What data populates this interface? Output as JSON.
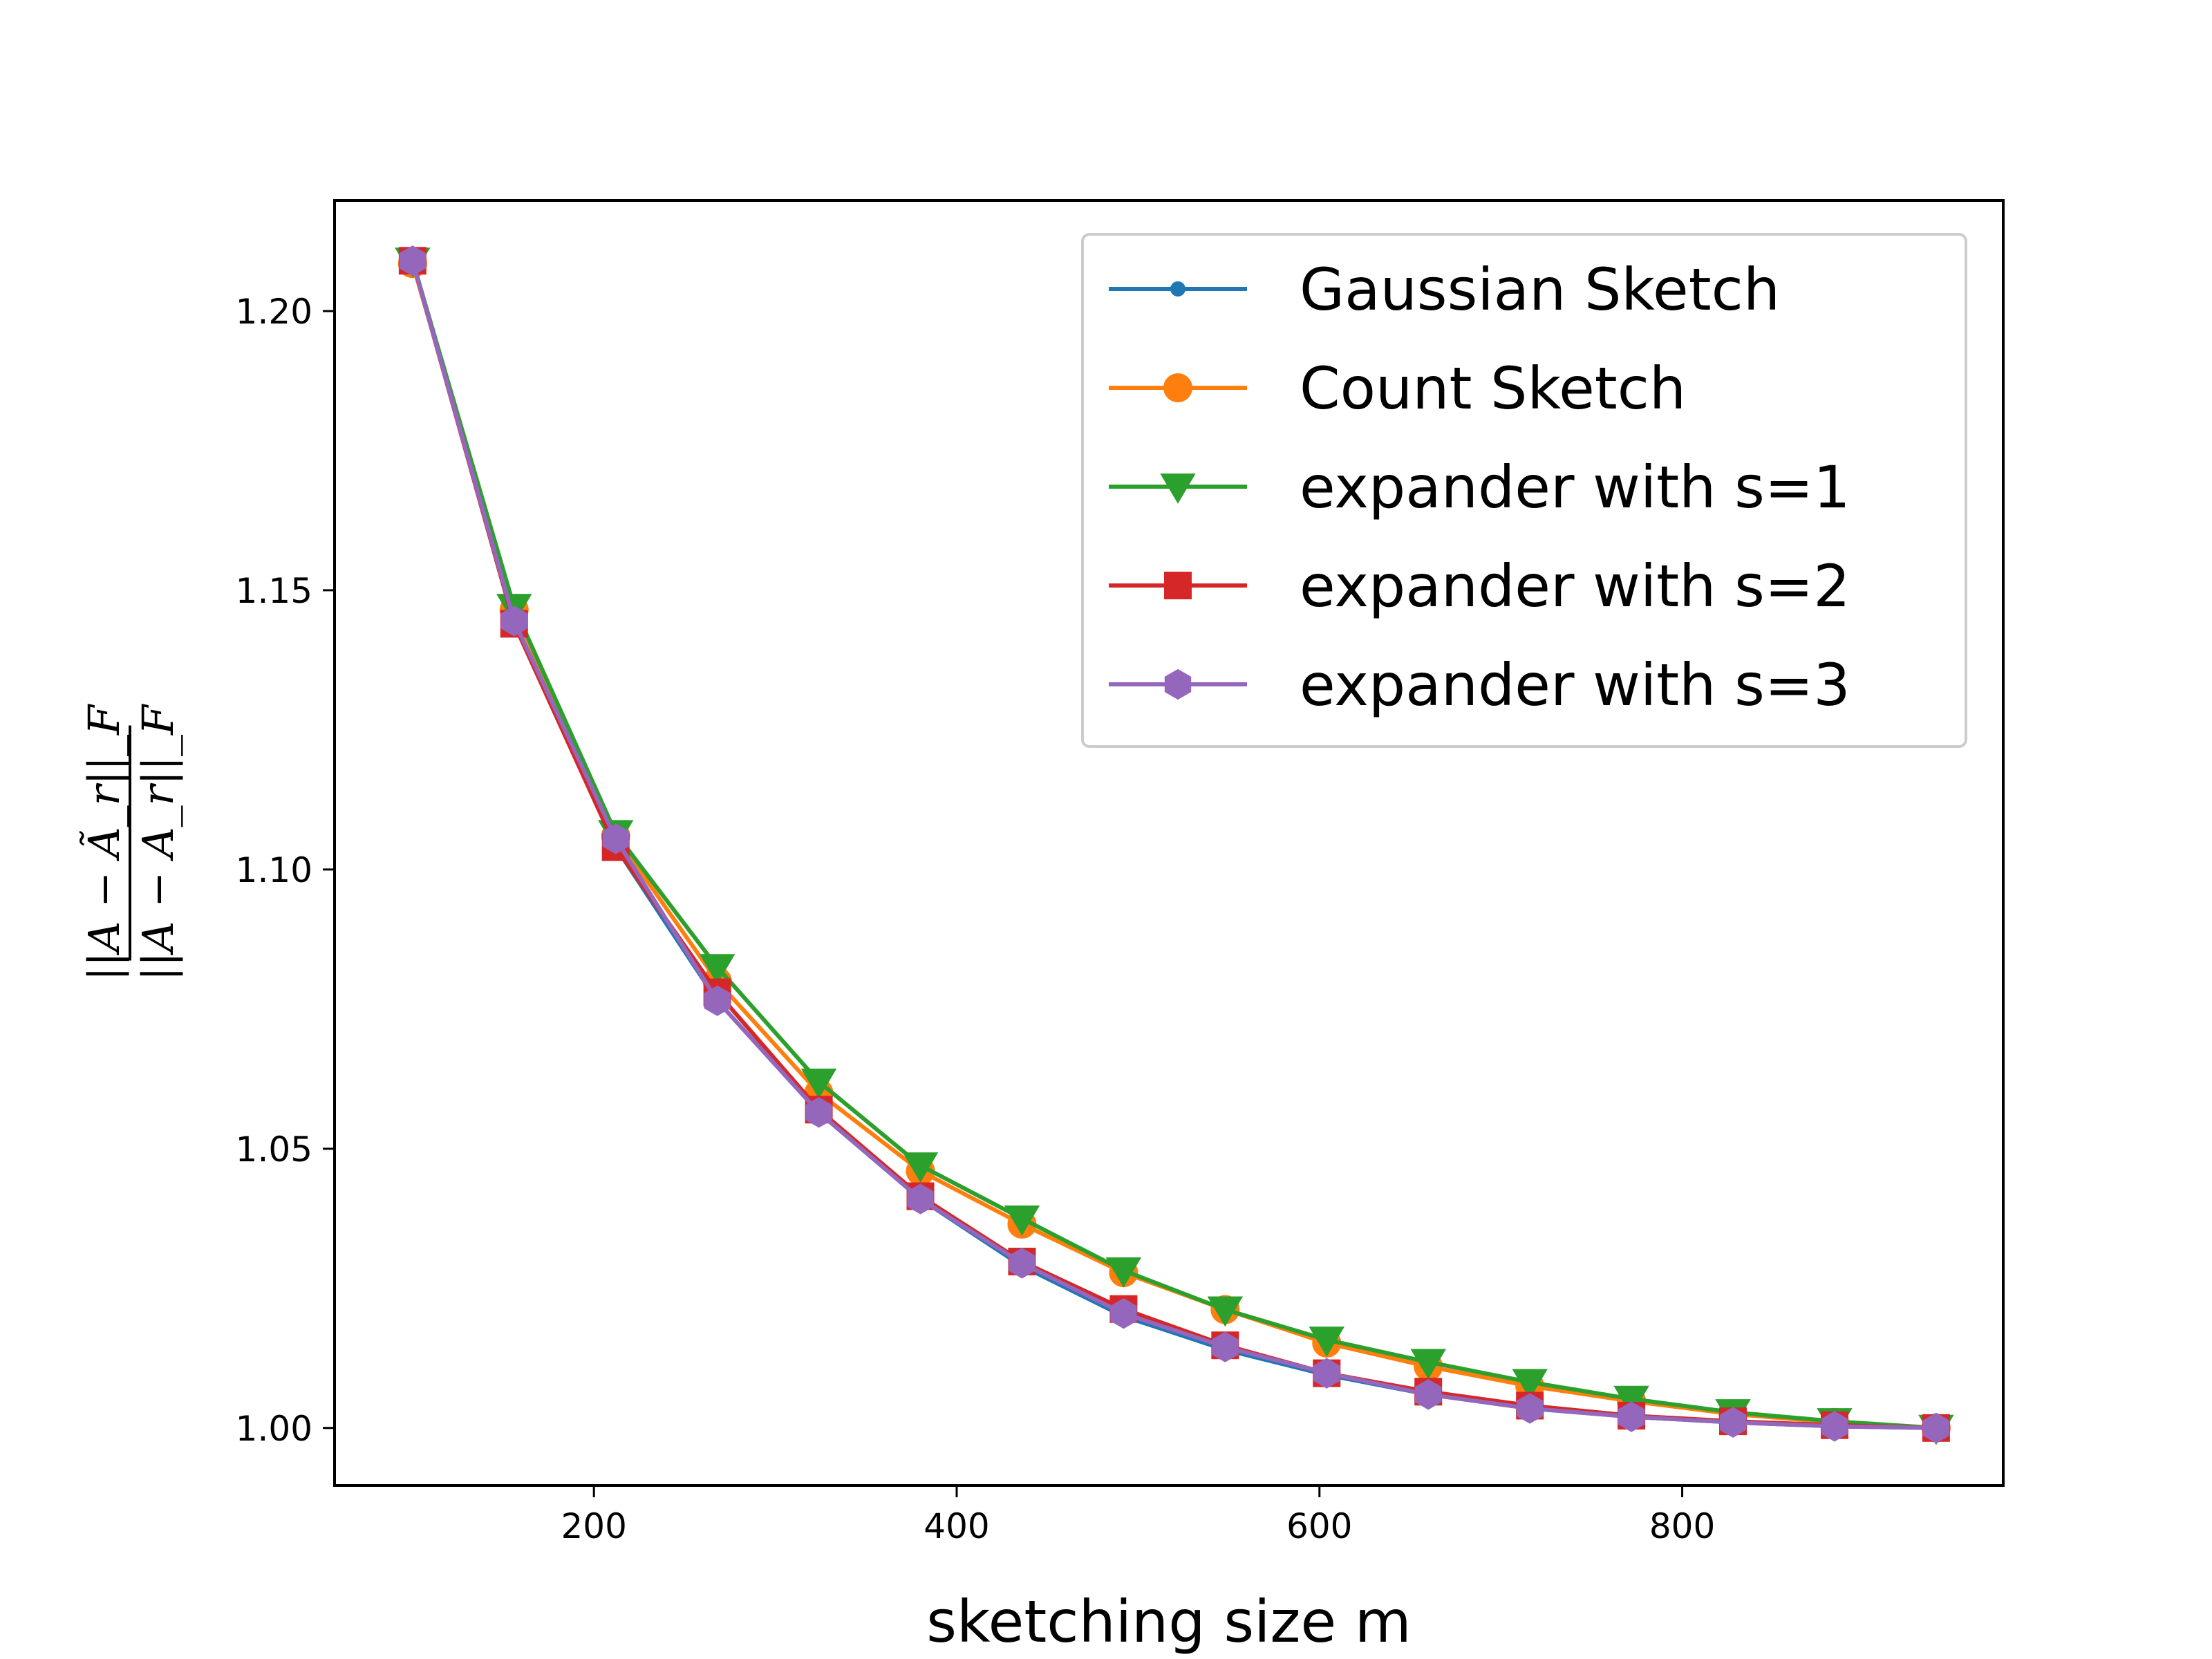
{
  "chart_data": {
    "type": "line",
    "xlabel": "sketching size m",
    "ylabel": "||A − Ã_r||_F / ||A − A_r||_F",
    "ylabel_numerator": "||A − Ã_r||_F",
    "ylabel_denominator": "||A − A_r||_F",
    "xlim": [
      57,
      977
    ],
    "ylim": [
      0.9897,
      1.2198
    ],
    "xticks": [
      200,
      400,
      600,
      800
    ],
    "yticks": [
      1.0,
      1.05,
      1.1,
      1.15,
      1.2
    ],
    "xtick_labels": [
      "200",
      "400",
      "600",
      "800"
    ],
    "ytick_labels": [
      "1.00",
      "1.05",
      "1.10",
      "1.15",
      "1.20"
    ],
    "grid": false,
    "legend_position": "upper-right",
    "x": [
      100,
      156,
      212,
      268,
      324,
      380,
      436,
      492,
      548,
      604,
      660,
      716,
      772,
      828,
      884,
      940
    ],
    "series": [
      {
        "name": "Gaussian Sketch",
        "color": "#1f77b4",
        "marker": "point",
        "values": [
          1.2092,
          1.1445,
          1.104,
          1.0765,
          1.0565,
          1.041,
          1.029,
          1.02,
          1.014,
          1.0095,
          1.006,
          1.0035,
          1.002,
          1.001,
          1.0003,
          1.0
        ]
      },
      {
        "name": "Count Sketch",
        "color": "#ff7f0e",
        "marker": "circle",
        "values": [
          1.2085,
          1.1465,
          1.106,
          1.08,
          1.06,
          1.046,
          1.0365,
          1.0278,
          1.0212,
          1.0152,
          1.011,
          1.0075,
          1.0048,
          1.0025,
          1.001,
          1.0
        ]
      },
      {
        "name": "expander with s=1",
        "color": "#2ca02c",
        "marker": "triangle-down",
        "values": [
          1.209,
          1.147,
          1.1065,
          1.0825,
          1.062,
          1.047,
          1.0375,
          1.0282,
          1.0212,
          1.0158,
          1.0118,
          1.0082,
          1.0052,
          1.0028,
          1.0012,
          1.0
        ]
      },
      {
        "name": "expander with s=2",
        "color": "#d62728",
        "marker": "square",
        "values": [
          1.209,
          1.144,
          1.104,
          1.078,
          1.057,
          1.0415,
          1.0298,
          1.0213,
          1.0148,
          1.0098,
          1.0065,
          1.004,
          1.0022,
          1.0012,
          1.0005,
          1.0
        ]
      },
      {
        "name": "expander with s=3",
        "color": "#9467bd",
        "marker": "hexagon",
        "values": [
          1.209,
          1.1445,
          1.1055,
          1.0765,
          1.0565,
          1.041,
          1.0295,
          1.0205,
          1.0145,
          1.0098,
          1.006,
          1.0035,
          1.002,
          1.001,
          1.0003,
          1.0
        ]
      }
    ]
  }
}
